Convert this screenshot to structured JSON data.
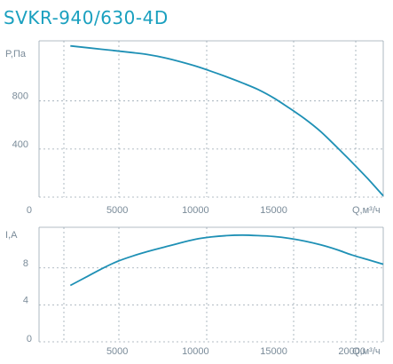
{
  "title": "SVKR-940/630-4D",
  "colors": {
    "title": "#1aa0bf",
    "curve": "#1e90b5",
    "grid": "#9aa7b2",
    "text": "#7a8b99"
  },
  "chart_data": [
    {
      "type": "line",
      "title": "",
      "ylabel": "P,Па",
      "xlabel": "Q,м³/ч",
      "xlim": [
        0,
        22000
      ],
      "ylim": [
        0,
        1300
      ],
      "xticks": [
        0,
        5000,
        10000,
        15000
      ],
      "yticks": [
        400,
        800
      ],
      "grid": true,
      "series": [
        {
          "x": [
            2000,
            4000,
            6000,
            7000,
            8000,
            9000,
            10000,
            11000,
            12000,
            13000,
            14000,
            15000,
            16000,
            17000,
            18000,
            19000,
            20000,
            21000,
            22000
          ],
          "y": [
            1258,
            1230,
            1202,
            1185,
            1160,
            1127,
            1090,
            1047,
            1000,
            950,
            895,
            825,
            740,
            650,
            545,
            420,
            290,
            155,
            10
          ]
        }
      ]
    },
    {
      "type": "line",
      "title": "",
      "ylabel": "I,A",
      "xlabel": "Q,м³/ч",
      "xlim": [
        0,
        22000
      ],
      "ylim": [
        0,
        12.4
      ],
      "xticks": [
        0,
        5000,
        10000,
        15000,
        20000
      ],
      "yticks": [
        4,
        8
      ],
      "grid": true,
      "series": [
        {
          "x": [
            2000,
            3000,
            4000,
            5000,
            6000,
            7000,
            8000,
            9000,
            10000,
            11000,
            12000,
            13000,
            14000,
            15000,
            16000,
            17000,
            18000,
            19000,
            20000,
            21000,
            22000
          ],
          "y": [
            6.1,
            7.0,
            7.9,
            8.7,
            9.3,
            9.8,
            10.25,
            10.7,
            11.1,
            11.35,
            11.5,
            11.55,
            11.5,
            11.4,
            11.2,
            10.9,
            10.5,
            10.0,
            9.4,
            8.9,
            8.4
          ]
        }
      ]
    }
  ]
}
